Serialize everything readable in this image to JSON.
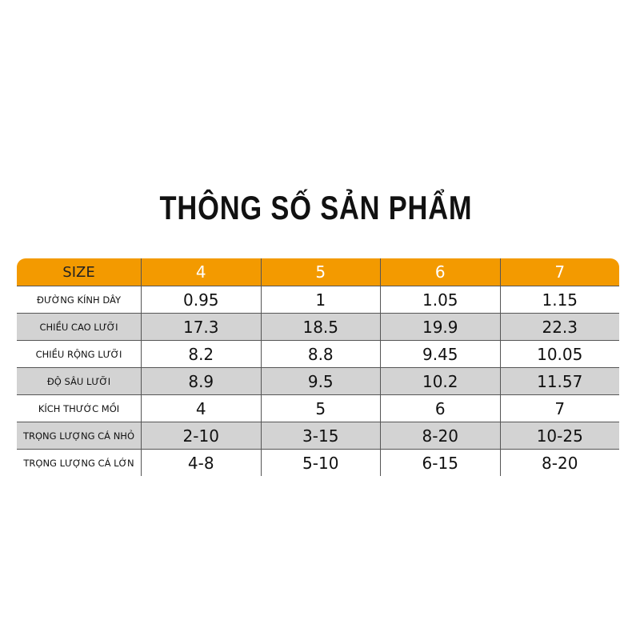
{
  "title": "THÔNG SỐ SẢN PHẨM",
  "colors": {
    "header": "#f39a00",
    "alt_row": "#d3d3d3"
  },
  "header": {
    "label": "SIZE",
    "sizes": [
      "4",
      "5",
      "6",
      "7"
    ]
  },
  "rows": [
    {
      "label": "ĐƯỜNG KÍNH DÂY",
      "values": [
        "0.95",
        "1",
        "1.05",
        "1.15"
      ]
    },
    {
      "label": "CHIỀU CAO LƯỠI",
      "values": [
        "17.3",
        "18.5",
        "19.9",
        "22.3"
      ]
    },
    {
      "label": "CHIỀU RỘNG LƯỠI",
      "values": [
        "8.2",
        "8.8",
        "9.45",
        "10.05"
      ]
    },
    {
      "label": "ĐỘ SÂU LƯỠI",
      "values": [
        "8.9",
        "9.5",
        "10.2",
        "11.57"
      ]
    },
    {
      "label": "KÍCH THƯỚC MỒI",
      "values": [
        "4",
        "5",
        "6",
        "7"
      ]
    },
    {
      "label": "TRỌNG LƯỢNG CÁ NHỎ",
      "values": [
        "2-10",
        "3-15",
        "8-20",
        "10-25"
      ]
    },
    {
      "label": "TRỌNG LƯỢNG CÁ LỚN",
      "values": [
        "4-8",
        "5-10",
        "6-15",
        "8-20"
      ]
    }
  ]
}
